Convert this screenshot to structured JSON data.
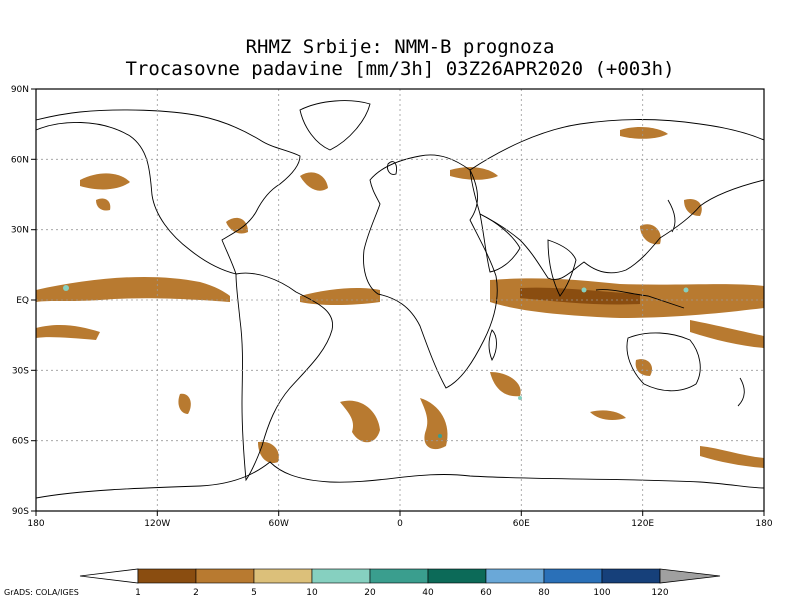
{
  "title_line1": "RHMZ Srbije: NMM-B prognoza",
  "title_line2": "Trocasovne padavine [mm/3h] 03Z26APR2020 (+003h)",
  "footer_credit": "GrADS: COLA/IGES",
  "lat_labels": [
    "90N",
    "60N",
    "30N",
    "EQ",
    "30S",
    "60S",
    "90S"
  ],
  "lon_labels": [
    "180",
    "120W",
    "60W",
    "0",
    "60E",
    "120E",
    "180"
  ],
  "colorbar": {
    "labels": [
      "1",
      "2",
      "5",
      "10",
      "20",
      "40",
      "60",
      "80",
      "100",
      "120"
    ],
    "colors": [
      "#8a4d10",
      "#b87a30",
      "#dcc07a",
      "#86d0c0",
      "#3a9e8e",
      "#0c6a58",
      "#6aa8d8",
      "#2a70b8",
      "#16407a",
      "#a0a0a0"
    ],
    "under_color": "#ffffff",
    "over_color": "#a0a0a0"
  },
  "map_colors": {
    "land_outline": "#000000",
    "grid": "#9a9a9a",
    "precip_low": "#b87a30",
    "precip_mid": "#8a4d10",
    "precip_high": "#86d0c0"
  }
}
